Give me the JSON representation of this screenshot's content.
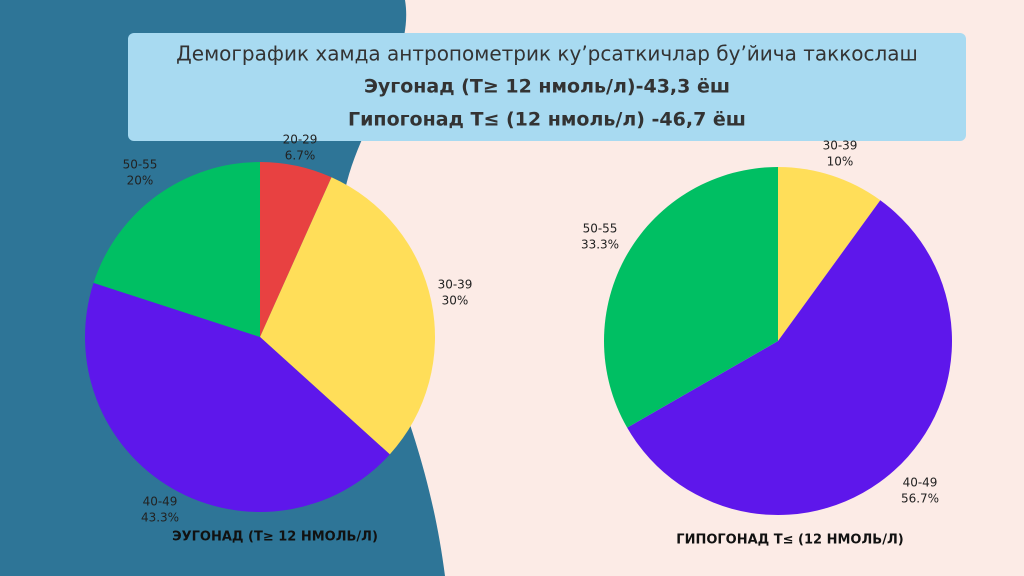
{
  "header": {
    "title": "Демографик хамда антропометрик ку’рсаткичлар бу’йича таккослаш",
    "line2": "Эугонад (Т≥ 12 нмоль/л)-43,3 ёш",
    "line3": "Гипогонад Т≤ (12 нмоль/л) -46,7 ёш"
  },
  "chart_data": [
    {
      "type": "pie",
      "title": "ЭУГОНАД (Т≥ 12 НМОЛЬ/Л)",
      "categories": [
        "20-29",
        "30-39",
        "40-49",
        "50-55"
      ],
      "values": [
        6.7,
        30,
        43.3,
        20
      ],
      "value_labels": [
        "6.7%",
        "30%",
        "43.3%",
        "20%"
      ],
      "colors": [
        "#e84141",
        "#ffde59",
        "#5e17eb",
        "#00bf63"
      ]
    },
    {
      "type": "pie",
      "title": "ГИПОГОНАД Т≤ (12 НМОЛЬ/Л)",
      "categories": [
        "30-39",
        "40-49",
        "50-55"
      ],
      "values": [
        10,
        56.7,
        33.3
      ],
      "value_labels": [
        "10%",
        "56.7%",
        "33.3%"
      ],
      "colors": [
        "#ffde59",
        "#5e17eb",
        "#00bf63"
      ]
    }
  ]
}
